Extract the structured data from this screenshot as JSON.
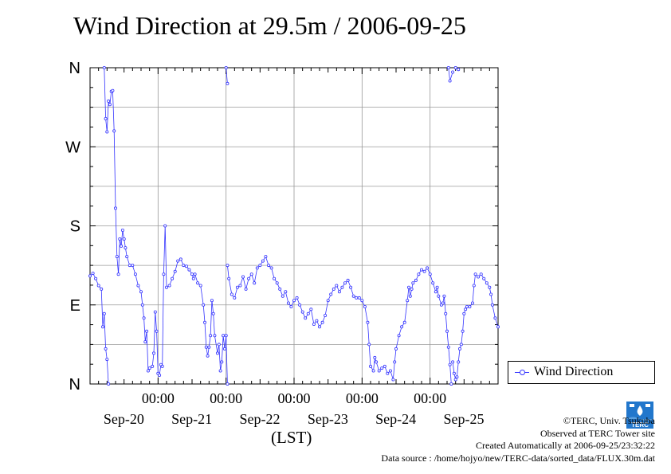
{
  "title": "Wind Direction at 29.5m / 2006-09-25",
  "xlabel": "(LST)",
  "legend": {
    "label": "Wind Direction"
  },
  "credits": {
    "copyright": "©TERC, Univ. Tsukuba",
    "observed": "Observed at TERC Tower site",
    "created": "Created Automatically at 2006-09-25/23:32:22",
    "source": "Data source : /home/hojyo/new/TERC-data/sorted_data/FLUX.30m.dat"
  },
  "logo_text": "TERC",
  "colors": {
    "series": "#3333ff",
    "grid": "#999999"
  },
  "chart_data": {
    "type": "line",
    "title": "Wind Direction at 29.5m / 2006-09-25",
    "xlabel": "(LST)",
    "ylabel": "",
    "xlim": [
      0,
      144
    ],
    "ylim": [
      0,
      360
    ],
    "grid": true,
    "legend_position": "right",
    "y_ticks": [
      {
        "value": 0,
        "label": "N"
      },
      {
        "value": 90,
        "label": "E"
      },
      {
        "value": 180,
        "label": "S"
      },
      {
        "value": 270,
        "label": "W"
      },
      {
        "value": 360,
        "label": "N"
      }
    ],
    "x_ticks": [
      {
        "value": 24,
        "time": "00:00",
        "date": "Sep-20"
      },
      {
        "value": 48,
        "time": "00:00",
        "date": "Sep-21"
      },
      {
        "value": 72,
        "time": "00:00",
        "date": "Sep-22"
      },
      {
        "value": 96,
        "time": "00:00",
        "date": "Sep-23"
      },
      {
        "value": 120,
        "time": "00:00",
        "date": "Sep-24"
      },
      {
        "value": 144,
        "time": "",
        "date": "Sep-25"
      }
    ],
    "series": [
      {
        "name": "Wind Direction",
        "segments": [
          [
            [
              0,
              123
            ],
            [
              1,
              126
            ],
            [
              2,
              120
            ],
            [
              3,
              112
            ],
            [
              4,
              108
            ],
            [
              4.5,
              65
            ],
            [
              5,
              80
            ],
            [
              5.5,
              40
            ],
            [
              6,
              28
            ],
            [
              6.5,
              0
            ]
          ],
          [
            [
              5,
              360
            ],
            [
              5.5,
              302
            ],
            [
              6,
              287
            ],
            [
              6.5,
              322
            ],
            [
              7,
              318
            ],
            [
              7.5,
              333
            ],
            [
              8,
              334
            ],
            [
              8.5,
              288
            ],
            [
              9,
              200
            ],
            [
              9.5,
              145
            ],
            [
              10,
              125
            ],
            [
              10.5,
              165
            ],
            [
              11,
              157
            ],
            [
              11.5,
              175
            ],
            [
              12,
              165
            ],
            [
              12.5,
              155
            ],
            [
              13,
              145
            ],
            [
              14,
              135
            ],
            [
              15,
              135
            ],
            [
              16,
              125
            ],
            [
              17,
              112
            ],
            [
              18,
              105
            ],
            [
              18.5,
              90
            ],
            [
              19,
              75
            ],
            [
              19.5,
              48
            ],
            [
              20,
              60
            ],
            [
              20.5,
              15
            ],
            [
              21,
              18
            ],
            [
              22,
              20
            ],
            [
              22.5,
              35
            ],
            [
              23,
              82
            ],
            [
              23.5,
              60
            ],
            [
              24,
              12
            ],
            [
              24.5,
              10
            ],
            [
              25,
              22
            ],
            [
              25.5,
              20
            ],
            [
              26,
              125
            ],
            [
              26.5,
              180
            ],
            [
              27,
              110
            ],
            [
              28,
              112
            ],
            [
              29,
              120
            ],
            [
              30,
              128
            ],
            [
              31,
              140
            ],
            [
              32,
              142
            ],
            [
              33,
              135
            ],
            [
              34,
              134
            ],
            [
              35,
              130
            ],
            [
              36,
              125
            ],
            [
              36.5,
              120
            ],
            [
              37,
              125
            ],
            [
              38,
              115
            ],
            [
              39,
              112
            ],
            [
              40,
              90
            ],
            [
              40.5,
              70
            ],
            [
              41,
              42
            ],
            [
              41.5,
              32
            ],
            [
              42,
              42
            ],
            [
              42.5,
              55
            ],
            [
              43,
              95
            ],
            [
              43.5,
              80
            ],
            [
              44,
              55
            ],
            [
              45,
              35
            ],
            [
              45.5,
              45
            ],
            [
              46,
              15
            ],
            [
              46.5,
              25
            ],
            [
              47,
              55
            ],
            [
              47.5,
              40
            ],
            [
              48,
              55
            ],
            [
              48.5,
              0
            ]
          ],
          [
            [
              48,
              360
            ],
            [
              48.5,
              342
            ]
          ],
          [
            [
              48.5,
              135
            ],
            [
              49,
              120
            ],
            [
              50,
              102
            ],
            [
              51,
              98
            ],
            [
              52,
              110
            ],
            [
              53,
              112
            ],
            [
              54,
              122
            ],
            [
              55,
              108
            ],
            [
              56,
              120
            ],
            [
              57,
              125
            ],
            [
              58,
              115
            ],
            [
              59,
              132
            ],
            [
              60,
              135
            ],
            [
              61,
              140
            ],
            [
              62,
              145
            ],
            [
              63,
              135
            ],
            [
              64,
              132
            ],
            [
              65,
              120
            ],
            [
              66,
              115
            ],
            [
              67,
              108
            ],
            [
              68,
              100
            ],
            [
              69,
              105
            ],
            [
              70,
              92
            ],
            [
              71,
              88
            ],
            [
              72,
              95
            ],
            [
              73,
              98
            ],
            [
              74,
              90
            ],
            [
              75,
              82
            ],
            [
              76,
              75
            ],
            [
              77,
              80
            ],
            [
              78,
              85
            ],
            [
              79,
              68
            ],
            [
              80,
              72
            ],
            [
              81,
              65
            ],
            [
              82,
              70
            ],
            [
              83,
              78
            ],
            [
              84,
              95
            ],
            [
              85,
              102
            ],
            [
              86,
              108
            ],
            [
              87,
              112
            ],
            [
              88,
              105
            ],
            [
              89,
              110
            ],
            [
              90,
              115
            ],
            [
              91,
              118
            ],
            [
              92,
              110
            ],
            [
              93,
              100
            ],
            [
              94,
              98
            ],
            [
              95,
              98
            ],
            [
              96,
              95
            ],
            [
              97,
              88
            ],
            [
              98,
              70
            ],
            [
              98.5,
              45
            ],
            [
              99,
              20
            ],
            [
              100,
              15
            ],
            [
              100.5,
              30
            ],
            [
              101,
              25
            ],
            [
              102,
              15
            ],
            [
              103,
              18
            ],
            [
              104,
              20
            ],
            [
              105,
              12
            ],
            [
              106,
              15
            ],
            [
              107,
              5
            ],
            [
              107.5,
              25
            ],
            [
              108,
              40
            ],
            [
              109,
              55
            ],
            [
              110,
              65
            ],
            [
              111,
              70
            ],
            [
              112,
              95
            ],
            [
              112.5,
              110
            ],
            [
              113,
              100
            ],
            [
              113.5,
              108
            ],
            [
              114,
              115
            ],
            [
              115,
              118
            ],
            [
              116,
              125
            ],
            [
              117,
              130
            ],
            [
              118,
              128
            ],
            [
              119,
              132
            ],
            [
              120,
              125
            ],
            [
              121,
              115
            ],
            [
              122,
              105
            ],
            [
              122.5,
              110
            ],
            [
              123,
              100
            ],
            [
              124,
              90
            ],
            [
              124.5,
              92
            ],
            [
              125,
              100
            ],
            [
              125.5,
              80
            ],
            [
              126,
              60
            ],
            [
              126.5,
              42
            ],
            [
              127,
              22
            ],
            [
              127.5,
              0
            ]
          ],
          [
            [
              126.5,
              360
            ],
            [
              127,
              345
            ],
            [
              128,
              355
            ]
          ],
          [
            [
              128,
              25
            ],
            [
              128.5,
              12
            ],
            [
              129,
              5
            ],
            [
              129.5,
              8
            ],
            [
              130,
              25
            ],
            [
              130.5,
              40
            ],
            [
              131,
              45
            ],
            [
              131.5,
              60
            ],
            [
              132,
              80
            ],
            [
              132.5,
              85
            ],
            [
              133,
              88
            ],
            [
              134,
              88
            ],
            [
              135,
              92
            ],
            [
              135.5,
              112
            ],
            [
              136,
              125
            ],
            [
              137,
              122
            ],
            [
              138,
              125
            ],
            [
              139,
              120
            ],
            [
              140,
              115
            ],
            [
              141,
              110
            ],
            [
              141.5,
              102
            ],
            [
              142,
              90
            ],
            [
              143,
              75
            ],
            [
              144,
              65
            ]
          ],
          [
            [
              129,
              360
            ],
            [
              130,
              358
            ]
          ]
        ]
      }
    ]
  }
}
